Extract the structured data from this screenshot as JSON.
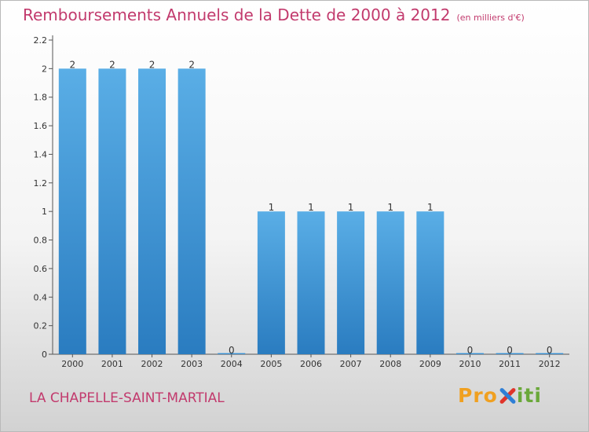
{
  "header": {
    "title": "Remboursements Annuels de la Dette de 2000 à 2012",
    "unit": "(en milliers d'€)"
  },
  "footer": {
    "commune": "LA CHAPELLE-SAINT-MARTIAL",
    "logo": {
      "p1": "Pro",
      "x": "x",
      "p2": "iti"
    }
  },
  "colors": {
    "title": "#c23a6d",
    "bar_top": "#5aaee6",
    "bar_bottom": "#2a7cc0",
    "logo_pro": "#f0a020",
    "logo_iti": "#6aa83a"
  },
  "chart_data": {
    "type": "bar",
    "title": "Remboursements Annuels de la Dette de 2000 à 2012",
    "subtitle": "(en milliers d'€)",
    "categories": [
      "2000",
      "2001",
      "2002",
      "2003",
      "2004",
      "2005",
      "2006",
      "2007",
      "2008",
      "2009",
      "2010",
      "2011",
      "2012"
    ],
    "values": [
      2,
      2,
      2,
      2,
      0,
      1,
      1,
      1,
      1,
      1,
      0,
      0,
      0
    ],
    "data_labels": [
      "2",
      "2",
      "2",
      "2",
      "0",
      "1",
      "1",
      "1",
      "1",
      "1",
      "0",
      "0",
      "0"
    ],
    "ylim": [
      0,
      2.2
    ],
    "yticks": [
      0,
      0.2,
      0.4,
      0.6,
      0.8,
      1,
      1.2,
      1.4,
      1.6,
      1.8,
      2,
      2.2
    ],
    "ytick_labels": [
      "0",
      "0.2",
      "0.4",
      "0.6",
      "0.8",
      "1",
      "1.2",
      "1.4",
      "1.6",
      "1.8",
      "2",
      "2.2"
    ],
    "xlabel": "",
    "ylabel": "",
    "grid": false,
    "legend": "none"
  }
}
